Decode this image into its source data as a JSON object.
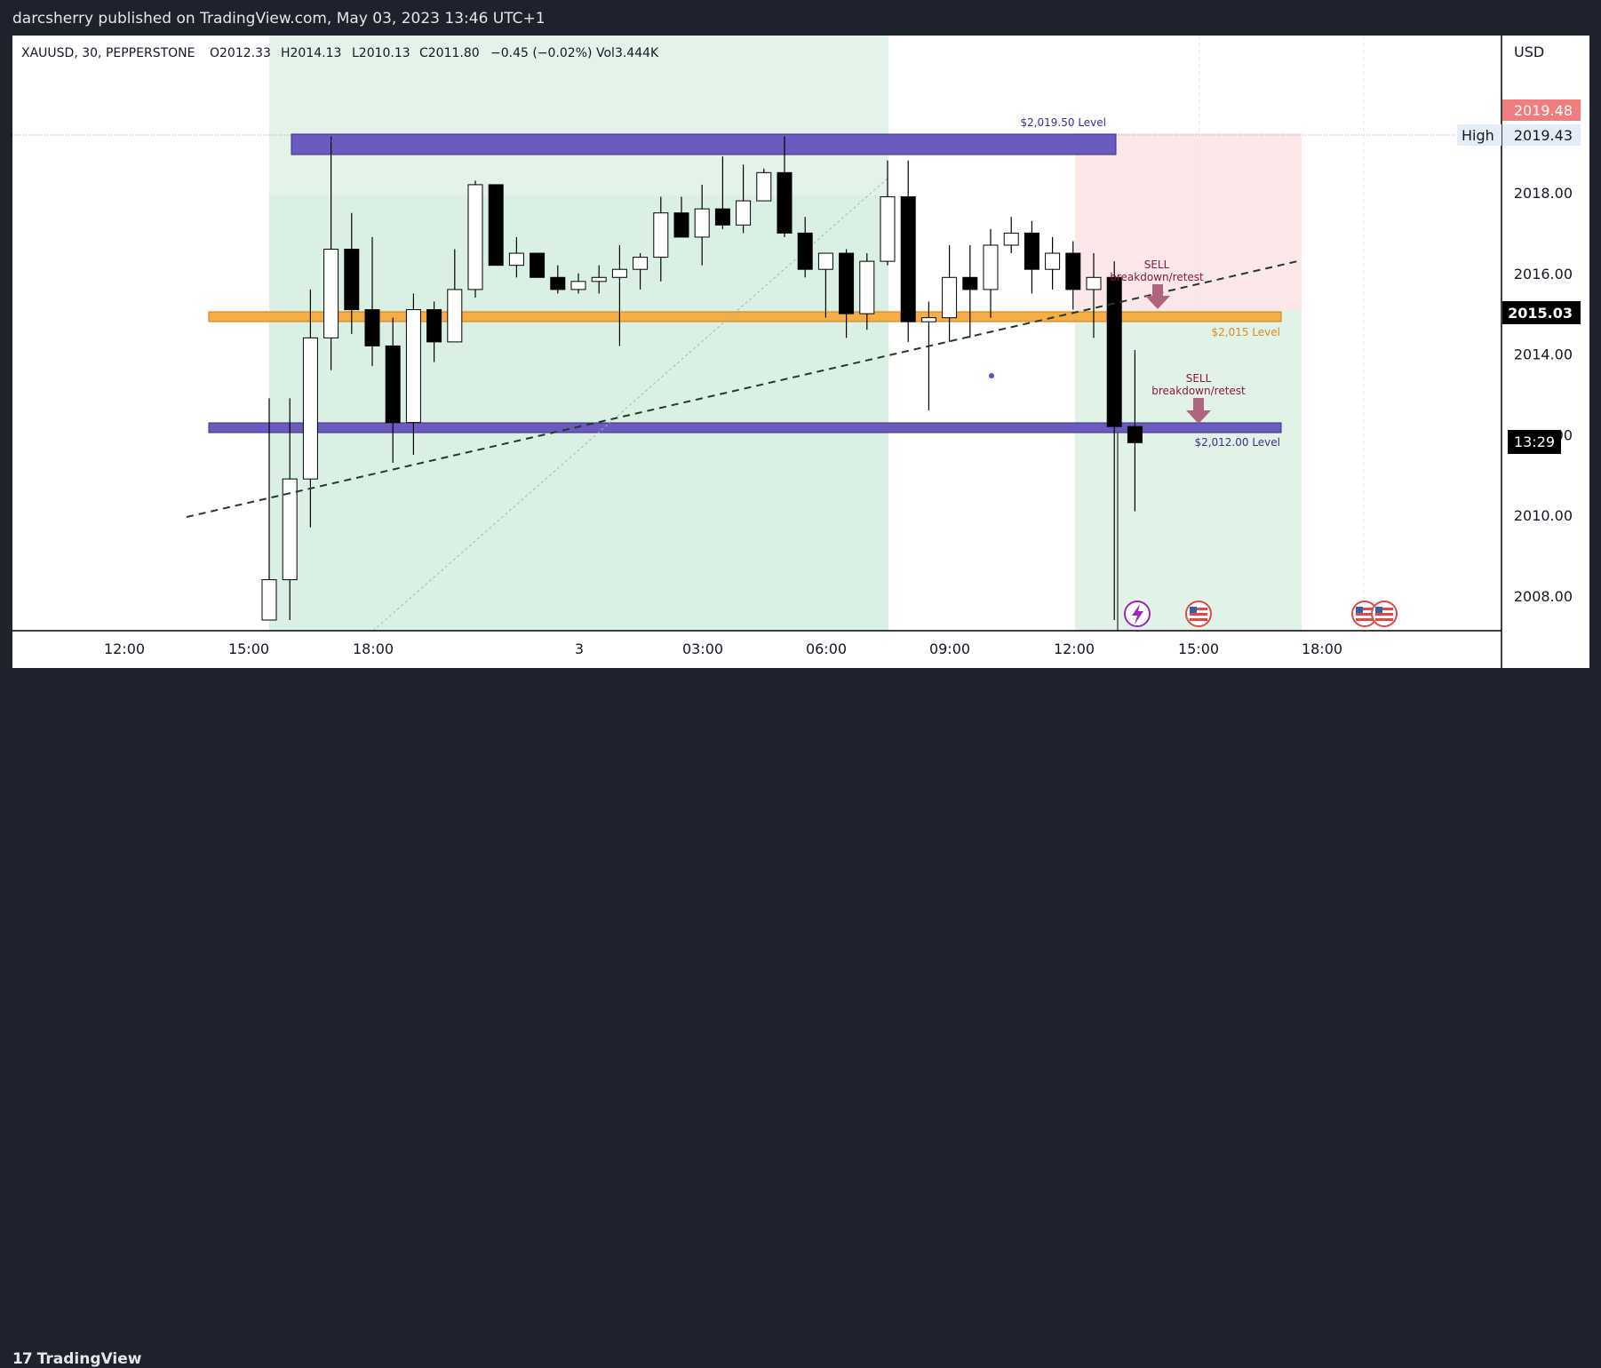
{
  "header": {
    "publish_line": "darcsherry published on TradingView.com, May 03, 2023 13:46 UTC+1"
  },
  "footer": {
    "brand": "TradingView"
  },
  "legend": {
    "symbol": "XAUUSD, 30, PEPPERSTONE",
    "open": "O2012.33",
    "high": "H2014.13",
    "low": "L2010.13",
    "close": "C2011.80",
    "change": "−0.45 (−0.02%)",
    "volume": "Vol3.444K"
  },
  "price_axis": {
    "currency": "USD",
    "ticks": [
      "2008.00",
      "2010.00",
      "2012.00",
      "2014.00",
      "2016.00",
      "2018.00"
    ],
    "badge_red": "2019.48",
    "high_label": "High",
    "high_value": "2019.43",
    "last_price": "2015.03",
    "countdown": "13:29"
  },
  "time_axis": {
    "ticks": [
      "12:00",
      "15:00",
      "18:00",
      "3",
      "03:00",
      "06:00",
      "09:00",
      "12:00",
      "15:00",
      "18:00"
    ]
  },
  "annotations": {
    "level_top": "$2,019.50 Level",
    "level_mid": "$2,015 Level",
    "level_low": "$2,012.00 Level",
    "sell1_title": "SELL",
    "sell1_sub": "breakdown/retest",
    "sell2_title": "SELL",
    "sell2_sub": "breakdown/retest"
  },
  "colors": {
    "zone_purple": "#5b4cb5",
    "zone_orange": "#f5a623",
    "up_candle": "#ffffff",
    "down_candle": "#000000",
    "sell_arrow": "#b0647d",
    "red_badge": "#f07d7d"
  },
  "chart_data": {
    "type": "candlestick",
    "symbol": "XAUUSD",
    "interval": "30",
    "ylim": [
      2007.4,
      2021.0
    ],
    "levels": [
      2019.5,
      2015.0,
      2012.0
    ],
    "candles": [
      {
        "o": 2007.4,
        "h": 2012.9,
        "l": 2007.4,
        "c": 2008.4
      },
      {
        "o": 2008.4,
        "h": 2012.9,
        "l": 2007.4,
        "c": 2010.9
      },
      {
        "o": 2010.9,
        "h": 2015.6,
        "l": 2009.7,
        "c": 2014.4
      },
      {
        "o": 2014.4,
        "h": 2019.4,
        "l": 2013.6,
        "c": 2016.6
      },
      {
        "o": 2016.6,
        "h": 2017.5,
        "l": 2014.5,
        "c": 2015.1
      },
      {
        "o": 2015.1,
        "h": 2016.9,
        "l": 2013.7,
        "c": 2014.2
      },
      {
        "o": 2014.2,
        "h": 2014.9,
        "l": 2011.3,
        "c": 2012.3
      },
      {
        "o": 2012.3,
        "h": 2015.5,
        "l": 2011.5,
        "c": 2015.1
      },
      {
        "o": 2015.1,
        "h": 2015.3,
        "l": 2013.8,
        "c": 2014.3
      },
      {
        "o": 2014.3,
        "h": 2016.6,
        "l": 2014.3,
        "c": 2015.6
      },
      {
        "o": 2015.6,
        "h": 2018.3,
        "l": 2015.4,
        "c": 2018.2
      },
      {
        "o": 2018.2,
        "h": 2018.2,
        "l": 2016.2,
        "c": 2016.2
      },
      {
        "o": 2016.2,
        "h": 2016.9,
        "l": 2015.9,
        "c": 2016.5
      },
      {
        "o": 2016.5,
        "h": 2016.5,
        "l": 2015.9,
        "c": 2015.9
      },
      {
        "o": 2015.9,
        "h": 2016.2,
        "l": 2015.5,
        "c": 2015.6
      },
      {
        "o": 2015.6,
        "h": 2016.0,
        "l": 2015.5,
        "c": 2015.8
      },
      {
        "o": 2015.8,
        "h": 2016.2,
        "l": 2015.5,
        "c": 2015.9
      },
      {
        "o": 2015.9,
        "h": 2016.7,
        "l": 2014.2,
        "c": 2016.1
      },
      {
        "o": 2016.1,
        "h": 2016.5,
        "l": 2015.6,
        "c": 2016.4
      },
      {
        "o": 2016.4,
        "h": 2017.9,
        "l": 2015.8,
        "c": 2017.5
      },
      {
        "o": 2017.5,
        "h": 2017.9,
        "l": 2016.9,
        "c": 2016.9
      },
      {
        "o": 2016.9,
        "h": 2018.2,
        "l": 2016.2,
        "c": 2017.6
      },
      {
        "o": 2017.6,
        "h": 2018.9,
        "l": 2017.1,
        "c": 2017.2
      },
      {
        "o": 2017.2,
        "h": 2018.7,
        "l": 2017.0,
        "c": 2017.8
      },
      {
        "o": 2017.8,
        "h": 2018.6,
        "l": 2017.8,
        "c": 2018.5
      },
      {
        "o": 2018.5,
        "h": 2019.4,
        "l": 2016.9,
        "c": 2017.0
      },
      {
        "o": 2017.0,
        "h": 2017.4,
        "l": 2015.9,
        "c": 2016.1
      },
      {
        "o": 2016.1,
        "h": 2016.4,
        "l": 2014.9,
        "c": 2016.5
      },
      {
        "o": 2016.5,
        "h": 2016.6,
        "l": 2014.4,
        "c": 2015.0
      },
      {
        "o": 2015.0,
        "h": 2016.5,
        "l": 2014.6,
        "c": 2016.3
      },
      {
        "o": 2016.3,
        "h": 2018.8,
        "l": 2016.2,
        "c": 2017.9
      },
      {
        "o": 2017.9,
        "h": 2018.8,
        "l": 2014.3,
        "c": 2014.8
      },
      {
        "o": 2014.8,
        "h": 2015.3,
        "l": 2012.6,
        "c": 2014.9
      },
      {
        "o": 2014.9,
        "h": 2016.7,
        "l": 2014.3,
        "c": 2015.9
      },
      {
        "o": 2015.9,
        "h": 2016.7,
        "l": 2014.4,
        "c": 2015.6
      },
      {
        "o": 2015.6,
        "h": 2017.1,
        "l": 2014.9,
        "c": 2016.7
      },
      {
        "o": 2016.7,
        "h": 2017.4,
        "l": 2016.5,
        "c": 2017.0
      },
      {
        "o": 2017.0,
        "h": 2017.3,
        "l": 2015.5,
        "c": 2016.1
      },
      {
        "o": 2016.1,
        "h": 2016.9,
        "l": 2015.6,
        "c": 2016.5
      },
      {
        "o": 2016.5,
        "h": 2016.8,
        "l": 2015.1,
        "c": 2015.6
      },
      {
        "o": 2015.6,
        "h": 2016.5,
        "l": 2014.4,
        "c": 2015.9
      },
      {
        "o": 2015.9,
        "h": 2016.3,
        "l": 2007.4,
        "c": 2012.2
      },
      {
        "o": 2012.2,
        "h": 2014.1,
        "l": 2010.1,
        "c": 2011.8
      }
    ]
  }
}
